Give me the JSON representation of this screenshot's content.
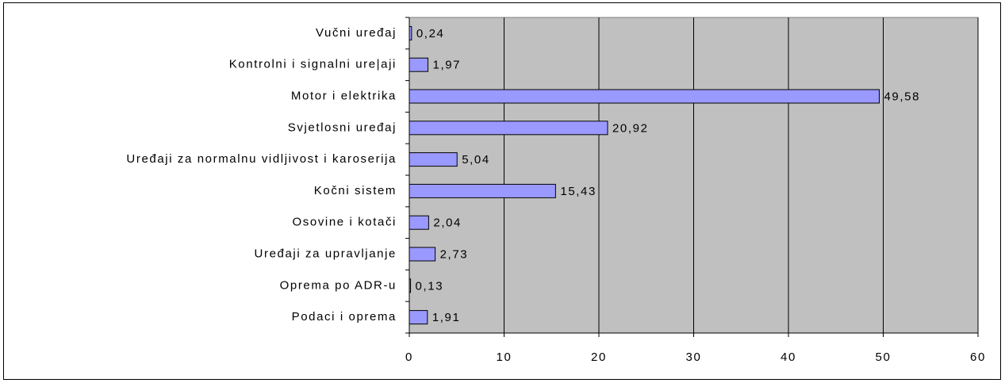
{
  "chart_data": {
    "type": "barh",
    "categories": [
      "Vučni uređaj",
      "Kontrolni i signalni ure|aji",
      "Motor i elektrika",
      "Svjetlosni uređaj",
      "Uređaji za normalnu vidljivost i karoserija",
      "Kočni sistem",
      "Osovine i kotači",
      "Uređaji za upravljanje",
      "Oprema po ADR-u",
      "Podaci i oprema"
    ],
    "values": [
      0.24,
      1.97,
      49.58,
      20.92,
      5.04,
      15.43,
      2.04,
      2.73,
      0.13,
      1.91
    ],
    "value_labels": [
      "0,24",
      "1,97",
      "49,58",
      "20,92",
      "5,04",
      "15,43",
      "2,04",
      "2,73",
      "0,13",
      "1,91"
    ],
    "color": "#9999ff",
    "xlim": [
      0,
      60
    ],
    "xticks": [
      0,
      10,
      20,
      30,
      40,
      50,
      60
    ],
    "grid": true
  }
}
